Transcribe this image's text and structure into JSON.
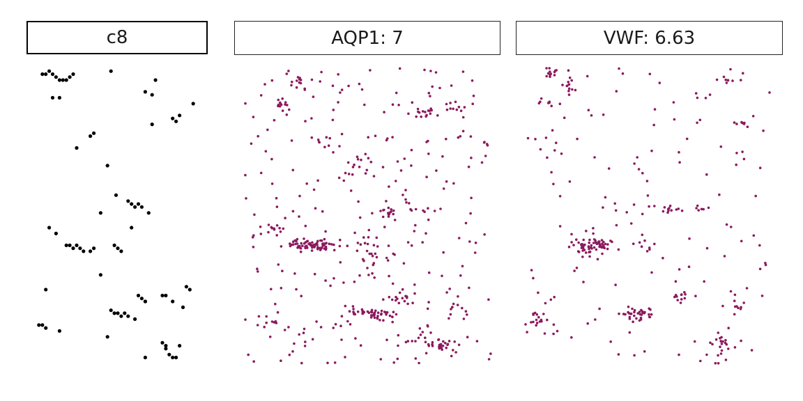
{
  "colors": {
    "c8": "#000000",
    "gene": "#8b1a5e"
  },
  "chart_data": [
    {
      "type": "scatter",
      "title": "c8",
      "xlim": [
        0,
        100
      ],
      "ylim": [
        0,
        100
      ],
      "grid": false,
      "color": "#000000",
      "x": [
        6,
        8,
        10,
        12,
        14,
        16,
        18,
        20,
        22,
        24,
        12,
        16,
        46,
        72,
        66,
        70,
        86,
        84,
        82,
        94,
        70,
        34,
        36,
        26,
        44,
        49,
        40,
        56,
        58,
        60,
        62,
        64,
        68,
        58,
        10,
        14,
        20,
        22,
        24,
        26,
        28,
        30,
        34,
        36,
        48,
        50,
        52,
        40,
        8,
        6,
        8,
        4,
        16,
        44,
        46,
        48,
        50,
        52,
        54,
        56,
        60,
        62,
        64,
        66,
        66,
        76,
        78,
        82,
        88,
        90,
        92,
        86,
        78,
        76,
        78,
        80,
        82,
        84,
        66
      ],
      "y": [
        2,
        2,
        1,
        2,
        3,
        4,
        4,
        4,
        3,
        2,
        10,
        10,
        1,
        4,
        8,
        9,
        16,
        18,
        17,
        12,
        19,
        23,
        22,
        27,
        33,
        43,
        49,
        45,
        46,
        47,
        46,
        47,
        49,
        54,
        54,
        56,
        60,
        60,
        61,
        60,
        61,
        62,
        62,
        61,
        60,
        61,
        62,
        70,
        75,
        87,
        88,
        87,
        89,
        91,
        82,
        83,
        83,
        84,
        83,
        84,
        85,
        77,
        78,
        79,
        79,
        77,
        77,
        79,
        81,
        74,
        75,
        94,
        94,
        93,
        95,
        97,
        98,
        98,
        98
      ],
      "size": 2.6
    },
    {
      "type": "scatter",
      "title": "AQP1: 7",
      "xlim": [
        0,
        100
      ],
      "ylim": [
        0,
        100
      ],
      "grid": false,
      "color": "#8b1a5e",
      "clusters": [
        {
          "x": 22,
          "y": 5,
          "n": 12,
          "sx": 2,
          "sy": 1.5
        },
        {
          "x": 15,
          "y": 12,
          "n": 10,
          "sx": 2,
          "sy": 1
        },
        {
          "x": 74,
          "y": 15,
          "n": 14,
          "sx": 4,
          "sy": 1
        },
        {
          "x": 85,
          "y": 13,
          "n": 8,
          "sx": 2,
          "sy": 1
        },
        {
          "x": 33,
          "y": 25,
          "n": 6,
          "sx": 2,
          "sy": 1
        },
        {
          "x": 48,
          "y": 32,
          "n": 10,
          "sx": 3,
          "sy": 3
        },
        {
          "x": 58,
          "y": 49,
          "n": 14,
          "sx": 2,
          "sy": 1
        },
        {
          "x": 73,
          "y": 48,
          "n": 6,
          "sx": 3,
          "sy": 0.5
        },
        {
          "x": 12,
          "y": 55,
          "n": 10,
          "sx": 2,
          "sy": 1
        },
        {
          "x": 28,
          "y": 60,
          "n": 70,
          "sx": 6,
          "sy": 1.2
        },
        {
          "x": 50,
          "y": 60,
          "n": 10,
          "sx": 3,
          "sy": 2
        },
        {
          "x": 65,
          "y": 78,
          "n": 14,
          "sx": 3,
          "sy": 1.2
        },
        {
          "x": 52,
          "y": 83,
          "n": 50,
          "sx": 5,
          "sy": 1
        },
        {
          "x": 8,
          "y": 86,
          "n": 10,
          "sx": 3,
          "sy": 1
        },
        {
          "x": 70,
          "y": 91,
          "n": 10,
          "sx": 2,
          "sy": 1.5
        },
        {
          "x": 80,
          "y": 94,
          "n": 24,
          "sx": 3,
          "sy": 1.5
        },
        {
          "x": 88,
          "y": 82,
          "n": 10,
          "sx": 2,
          "sy": 3
        }
      ],
      "scatter_n": 280,
      "size": 1.8
    },
    {
      "type": "scatter",
      "title": "VWF: 6.63",
      "xlim": [
        0,
        100
      ],
      "ylim": [
        0,
        100
      ],
      "grid": false,
      "color": "#8b1a5e",
      "clusters": [
        {
          "x": 10,
          "y": 2,
          "n": 12,
          "sx": 2,
          "sy": 1
        },
        {
          "x": 17,
          "y": 6,
          "n": 12,
          "sx": 1.5,
          "sy": 2
        },
        {
          "x": 10,
          "y": 12,
          "n": 6,
          "sx": 2,
          "sy": 0.5
        },
        {
          "x": 82,
          "y": 4,
          "n": 6,
          "sx": 2,
          "sy": 1
        },
        {
          "x": 72,
          "y": 10,
          "n": 4,
          "sx": 2,
          "sy": 1
        },
        {
          "x": 88,
          "y": 19,
          "n": 6,
          "sx": 2,
          "sy": 1
        },
        {
          "x": 58,
          "y": 48,
          "n": 10,
          "sx": 2,
          "sy": 1
        },
        {
          "x": 72,
          "y": 48,
          "n": 6,
          "sx": 3,
          "sy": 0.5
        },
        {
          "x": 27,
          "y": 60,
          "n": 60,
          "sx": 4,
          "sy": 1.2
        },
        {
          "x": 48,
          "y": 60,
          "n": 8,
          "sx": 3,
          "sy": 2
        },
        {
          "x": 62,
          "y": 77,
          "n": 10,
          "sx": 2,
          "sy": 1
        },
        {
          "x": 45,
          "y": 83,
          "n": 30,
          "sx": 4,
          "sy": 1
        },
        {
          "x": 4,
          "y": 86,
          "n": 14,
          "sx": 2,
          "sy": 1.5
        },
        {
          "x": 80,
          "y": 94,
          "n": 18,
          "sx": 2,
          "sy": 2
        },
        {
          "x": 86,
          "y": 80,
          "n": 8,
          "sx": 2,
          "sy": 2
        }
      ],
      "scatter_n": 150,
      "size": 1.8
    }
  ]
}
